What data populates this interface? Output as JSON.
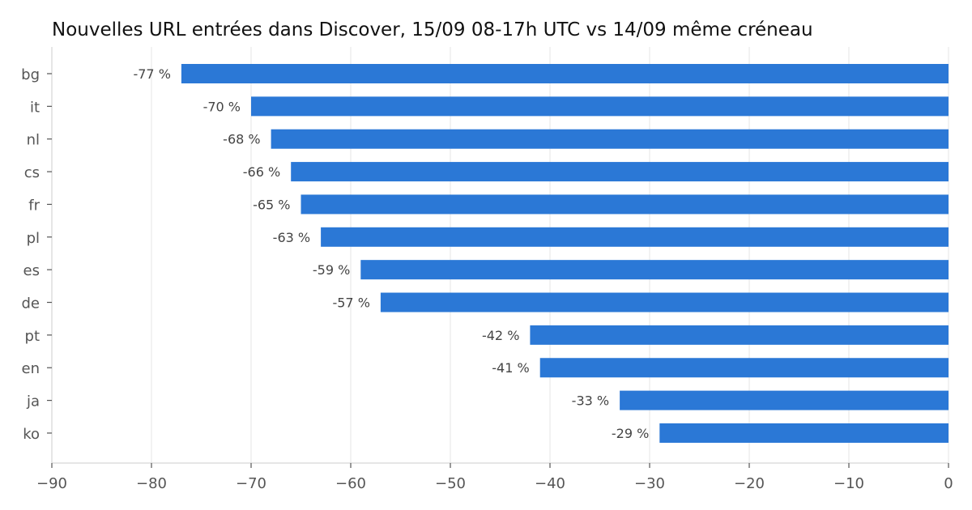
{
  "chart_data": {
    "type": "bar",
    "orientation": "horizontal",
    "title": "Nouvelles URL entrées dans Discover, 15/09 08-17h UTC vs 14/09 même créneau",
    "xlabel": "",
    "ylabel": "",
    "categories": [
      "bg",
      "it",
      "nl",
      "cs",
      "fr",
      "pl",
      "es",
      "de",
      "pt",
      "en",
      "ja",
      "ko"
    ],
    "values": [
      -77,
      -70,
      -68,
      -66,
      -65,
      -63,
      -59,
      -57,
      -42,
      -41,
      -33,
      -29
    ],
    "data_labels": [
      "-77 %",
      "-70 %",
      "-68 %",
      "-66 %",
      "-65 %",
      "-63 %",
      "-59 %",
      "-57 %",
      "-42 %",
      "-41 %",
      "-33 %",
      "-29 %"
    ],
    "xlim": [
      -90,
      0
    ],
    "xticks": [
      -90,
      -80,
      -70,
      -60,
      -50,
      -40,
      -30,
      -20,
      -10,
      0
    ],
    "xtick_labels": [
      "−90",
      "−80",
      "−70",
      "−60",
      "−50",
      "−40",
      "−30",
      "−20",
      "−10",
      "0"
    ],
    "grid": "vertical",
    "legend": "none",
    "colors": {
      "bar": "#2b78d6",
      "grid": "#e6e6e6",
      "axis": "#cccccc",
      "text": "#555555"
    }
  }
}
